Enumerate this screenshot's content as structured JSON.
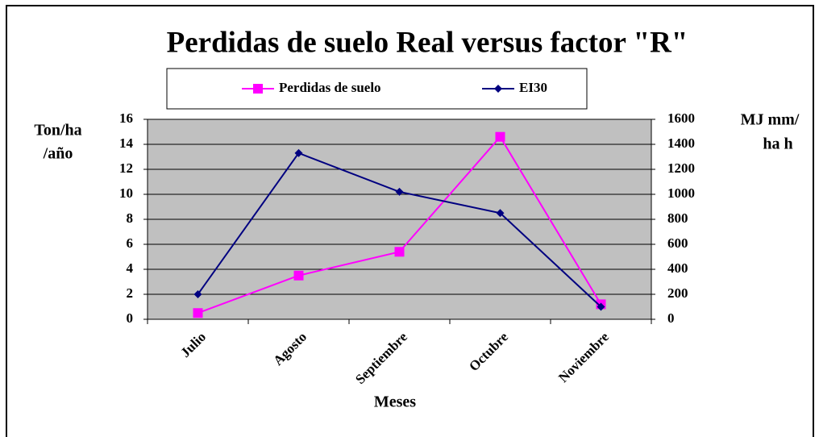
{
  "chart_data": {
    "type": "line",
    "title": "Perdidas de suelo Real versus factor \"R\"",
    "xlabel": "Meses",
    "ylabel": [
      "Ton/ha",
      "/año"
    ],
    "y2label": [
      "MJ mm/",
      "ha h"
    ],
    "categories": [
      "Julio",
      "Agosto",
      "Septiembre",
      "Octubre",
      "Noviembre"
    ],
    "series": [
      {
        "name": "Perdidas de suelo",
        "color": "#ff00ff",
        "marker": "square",
        "values": [
          0.5,
          3.5,
          5.4,
          14.6,
          1.2
        ]
      },
      {
        "name": "EI30",
        "color": "#000080",
        "marker": "diamond",
        "axis": "y2",
        "values": [
          200,
          1330,
          1020,
          850,
          100
        ]
      }
    ],
    "ylim": [
      0,
      16
    ],
    "yticks": [
      0,
      2,
      4,
      6,
      8,
      10,
      12,
      14,
      16
    ],
    "y2lim": [
      0,
      1600
    ],
    "y2ticks": [
      0,
      200,
      400,
      600,
      800,
      1000,
      1200,
      1400,
      1600
    ],
    "grid": true
  }
}
